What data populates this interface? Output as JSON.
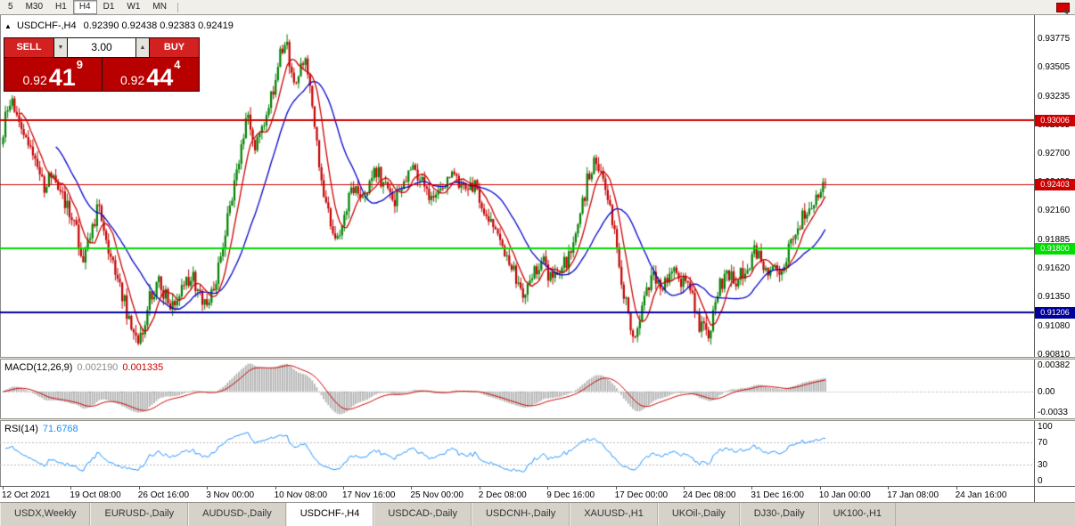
{
  "toolbar": {
    "timeframes": [
      "5",
      "M30",
      "H1",
      "H4",
      "D1",
      "W1",
      "MN"
    ],
    "active_timeframe": "H4"
  },
  "header": {
    "collapse_icon": "▲",
    "symbol": "USDCHF-,H4",
    "ohlc": "0.92390 0.92438 0.92383 0.92419"
  },
  "trade_panel": {
    "sell_label": "SELL",
    "buy_label": "BUY",
    "volume": "3.00",
    "spin_down_icon": "▼",
    "spin_up_icon": "▲",
    "sell_price": {
      "base": "0.92",
      "pips": "41",
      "frac": "9"
    },
    "buy_price": {
      "base": "0.92",
      "pips": "44",
      "frac": "4"
    }
  },
  "price_axis": {
    "labels": [
      "0.93775",
      "0.93505",
      "0.93235",
      "0.92965",
      "0.92700",
      "0.92430",
      "0.92160",
      "0.91885",
      "0.91620",
      "0.91350",
      "0.91080",
      "0.90810"
    ],
    "hlines": [
      {
        "label": "0.93006",
        "price": 0.93006,
        "color": "#cc0000",
        "width": 2
      },
      {
        "label": "0.92403",
        "price": 0.92403,
        "color": "#cc0000",
        "width": 1
      },
      {
        "label": "0.91800",
        "price": 0.918,
        "color": "#00dd00",
        "width": 2
      },
      {
        "label": "0.91206",
        "price": 0.91206,
        "color": "#000099",
        "width": 2
      }
    ]
  },
  "macd": {
    "title": "MACD(12,26,9)",
    "value_main": "0.002190",
    "value_signal": "0.001335",
    "axis_max": "0.00382",
    "axis_zero": "0.00",
    "axis_min": "-0.0033",
    "colors": {
      "hist": "#b2b2b2",
      "signal": "#cc0000"
    }
  },
  "rsi": {
    "title": "RSI(14)",
    "value": "71.6768",
    "axis": [
      "100",
      "70",
      "30",
      "0"
    ],
    "levels": [
      70,
      30
    ],
    "color": "#1e90ff"
  },
  "time_axis": {
    "labels": [
      "12 Oct 2021",
      "19 Oct 08:00",
      "26 Oct 16:00",
      "3 Nov 00:00",
      "10 Nov 08:00",
      "17 Nov 16:00",
      "25 Nov 00:00",
      "2 Dec 08:00",
      "9 Dec 16:00",
      "17 Dec 00:00",
      "24 Dec 08:00",
      "31 Dec 16:00",
      "10 Jan 00:00",
      "17 Jan 08:00",
      "24 Jan 16:00"
    ]
  },
  "tabs": {
    "items": [
      "USDX,Weekly",
      "EURUSD-,Daily",
      "AUDUSD-,Daily",
      "USDCHF-,H4",
      "USDCAD-,Daily",
      "USDCNH-,Daily",
      "XAUUSD-,H1",
      "UKOil-,Daily",
      "DJ30-,Daily",
      "UK100-,H1"
    ],
    "active": "USDCHF-,H4",
    "scroll_icon": "◄"
  },
  "chart_data": {
    "type": "candlestick",
    "symbol": "USDCHF-",
    "timeframe": "H4",
    "last_open": 0.9239,
    "last_high": 0.92438,
    "last_low": 0.92383,
    "last_close": 0.92419,
    "price_min": 0.90785,
    "price_max": 0.93992,
    "bars": 360,
    "noise_amp": 0.0008,
    "seed": 20220124,
    "ma_fast_period": 8,
    "ma_slow_period": 24,
    "colors": {
      "up": "#008000",
      "down": "#c40000",
      "ma_fast": "#cc0000",
      "ma_slow": "#0000cc"
    },
    "anchors": [
      [
        0.0,
        0.9278
      ],
      [
        0.006,
        0.9308
      ],
      [
        0.014,
        0.9318
      ],
      [
        0.022,
        0.9295
      ],
      [
        0.04,
        0.9262
      ],
      [
        0.052,
        0.9238
      ],
      [
        0.062,
        0.9252
      ],
      [
        0.075,
        0.9228
      ],
      [
        0.088,
        0.9205
      ],
      [
        0.1,
        0.9172
      ],
      [
        0.108,
        0.9195
      ],
      [
        0.118,
        0.9218
      ],
      [
        0.128,
        0.9188
      ],
      [
        0.142,
        0.9152
      ],
      [
        0.155,
        0.9115
      ],
      [
        0.168,
        0.9092
      ],
      [
        0.18,
        0.9132
      ],
      [
        0.192,
        0.9148
      ],
      [
        0.205,
        0.9128
      ],
      [
        0.218,
        0.9142
      ],
      [
        0.232,
        0.9155
      ],
      [
        0.248,
        0.9128
      ],
      [
        0.26,
        0.9148
      ],
      [
        0.272,
        0.9198
      ],
      [
        0.282,
        0.9238
      ],
      [
        0.292,
        0.9278
      ],
      [
        0.3,
        0.9312
      ],
      [
        0.308,
        0.9272
      ],
      [
        0.318,
        0.9295
      ],
      [
        0.328,
        0.9322
      ],
      [
        0.338,
        0.9358
      ],
      [
        0.346,
        0.9375
      ],
      [
        0.354,
        0.9332
      ],
      [
        0.362,
        0.9348
      ],
      [
        0.37,
        0.9355
      ],
      [
        0.38,
        0.9298
      ],
      [
        0.39,
        0.9242
      ],
      [
        0.4,
        0.9205
      ],
      [
        0.41,
        0.9188
      ],
      [
        0.42,
        0.9225
      ],
      [
        0.43,
        0.9242
      ],
      [
        0.442,
        0.9228
      ],
      [
        0.454,
        0.9255
      ],
      [
        0.466,
        0.9238
      ],
      [
        0.478,
        0.9222
      ],
      [
        0.49,
        0.9245
      ],
      [
        0.502,
        0.9258
      ],
      [
        0.514,
        0.9238
      ],
      [
        0.526,
        0.9222
      ],
      [
        0.538,
        0.9245
      ],
      [
        0.55,
        0.9252
      ],
      [
        0.562,
        0.9232
      ],
      [
        0.574,
        0.9242
      ],
      [
        0.586,
        0.9212
      ],
      [
        0.598,
        0.9198
      ],
      [
        0.61,
        0.9172
      ],
      [
        0.622,
        0.9158
      ],
      [
        0.634,
        0.9132
      ],
      [
        0.646,
        0.9155
      ],
      [
        0.657,
        0.917
      ],
      [
        0.668,
        0.9148
      ],
      [
        0.679,
        0.9158
      ],
      [
        0.69,
        0.9175
      ],
      [
        0.701,
        0.92
      ],
      [
        0.712,
        0.9248
      ],
      [
        0.72,
        0.9265
      ],
      [
        0.73,
        0.9242
      ],
      [
        0.74,
        0.9215
      ],
      [
        0.75,
        0.9165
      ],
      [
        0.76,
        0.912
      ],
      [
        0.77,
        0.9094
      ],
      [
        0.78,
        0.9128
      ],
      [
        0.79,
        0.9152
      ],
      [
        0.801,
        0.9146
      ],
      [
        0.813,
        0.916
      ],
      [
        0.825,
        0.9152
      ],
      [
        0.837,
        0.9138
      ],
      [
        0.848,
        0.9108
      ],
      [
        0.858,
        0.9098
      ],
      [
        0.868,
        0.9138
      ],
      [
        0.88,
        0.9158
      ],
      [
        0.892,
        0.9152
      ],
      [
        0.904,
        0.9162
      ],
      [
        0.916,
        0.9178
      ],
      [
        0.93,
        0.9162
      ],
      [
        0.944,
        0.9158
      ],
      [
        0.958,
        0.9182
      ],
      [
        0.972,
        0.9208
      ],
      [
        0.986,
        0.9228
      ],
      [
        1.0,
        0.9242
      ]
    ]
  }
}
